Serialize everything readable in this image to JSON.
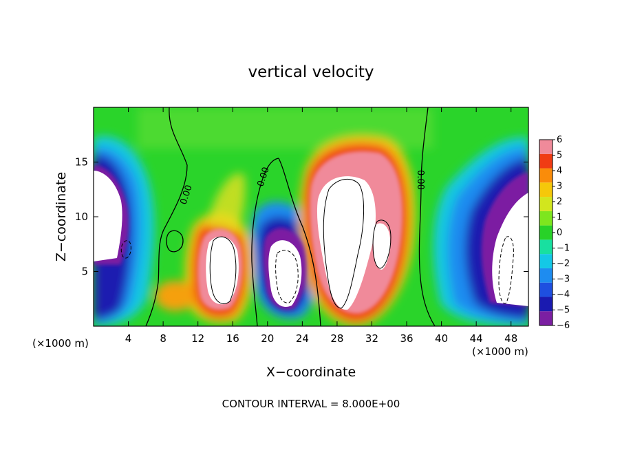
{
  "chart_data": {
    "type": "heatmap",
    "title": "vertical velocity",
    "xlabel": "X−coordinate",
    "ylabel": "Z−coordinate",
    "x_unit": "(×1000 m)",
    "y_unit": "(×1000 m)",
    "footer": "CONTOUR INTERVAL = 8.000E+00",
    "xlim": [
      0,
      50
    ],
    "ylim": [
      0,
      20
    ],
    "x_ticks": [
      4,
      8,
      12,
      16,
      20,
      24,
      28,
      32,
      36,
      40,
      44,
      48
    ],
    "y_ticks": [
      5,
      10,
      15
    ],
    "contour_interval": 8.0,
    "contour_labels": [
      "0.00",
      "0.00",
      "0.00"
    ],
    "colorbar": {
      "levels": [
        -6,
        -5,
        -4,
        -3,
        -2,
        -1,
        0,
        1,
        2,
        3,
        4,
        5,
        6
      ],
      "colors": [
        "#7b1fa2",
        "#1a1ab0",
        "#1e4fe0",
        "#1e8cf0",
        "#14c8e6",
        "#18e0a0",
        "#28d228",
        "#7ee61e",
        "#d2e61e",
        "#f5c80a",
        "#fa8c0a",
        "#f03c14",
        "#f08a9a"
      ]
    },
    "features": [
      {
        "kind": "downdraft",
        "x": 2,
        "z": 10,
        "max": -10
      },
      {
        "kind": "updraft",
        "x": 14.5,
        "z": 5,
        "max": 12
      },
      {
        "kind": "downdraft",
        "x": 22,
        "z": 5,
        "max": -12
      },
      {
        "kind": "updraft",
        "x": 29,
        "z": 8.5,
        "max": 18
      },
      {
        "kind": "updraft",
        "x": 33.5,
        "z": 8,
        "max": 9
      },
      {
        "kind": "downdraft",
        "x": 46.5,
        "z": 6,
        "max": -12
      }
    ]
  }
}
